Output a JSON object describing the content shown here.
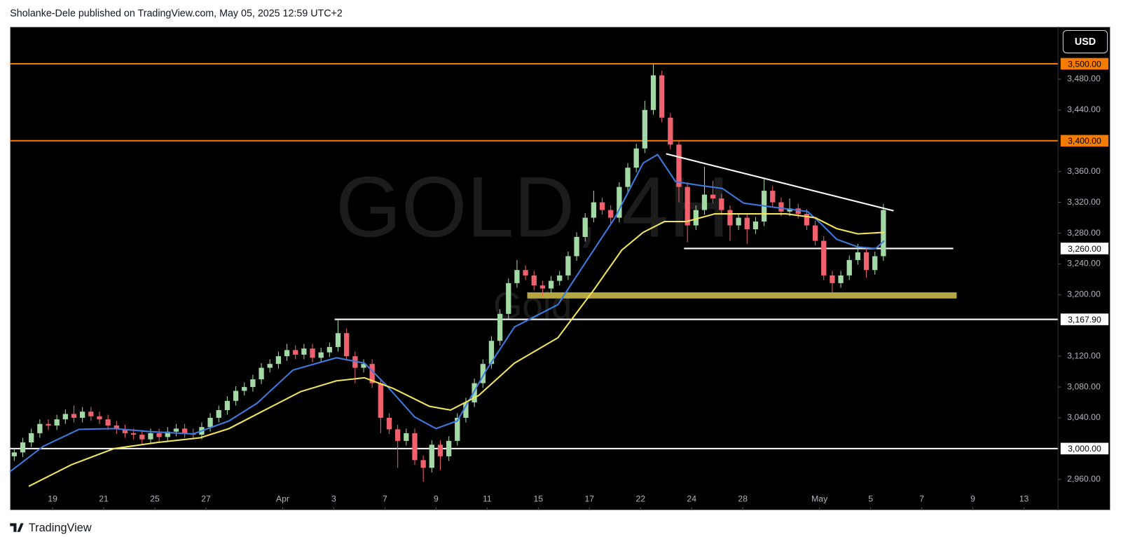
{
  "header": {
    "title": "Sholanke-Dele published on TradingView.com, May 05, 2025 12:59 UTC+2"
  },
  "footer": {
    "brand": "TradingView"
  },
  "chart_data": {
    "type": "candlestick",
    "watermark": {
      "symbol": "GOLD, 4H",
      "name": "Gold"
    },
    "currency": "USD",
    "up_color": "#a3d9a5",
    "down_color": "#f0616d",
    "open": [
      2990,
      2995,
      3008,
      3020,
      3032,
      3030,
      3038,
      3045,
      3040,
      3048,
      3042,
      3038,
      3030,
      3025,
      3020,
      3018,
      3012,
      3020,
      3015,
      3022,
      3026,
      3020,
      3018,
      3028,
      3040,
      3050,
      3062,
      3075,
      3080,
      3090,
      3105,
      3110,
      3120,
      3128,
      3122,
      3130,
      3118,
      3125,
      3132,
      3150,
      3120,
      3105,
      3110,
      3085,
      3040,
      3025,
      3010,
      3020,
      2985,
      2975,
      3005,
      2990,
      3010,
      3040,
      3060,
      3085,
      3110,
      3140,
      3175,
      3215,
      3232,
      3225,
      3212,
      3208,
      3218,
      3225,
      3250,
      3275,
      3300,
      3320,
      3310,
      3300,
      3340,
      3365,
      3390,
      3440,
      3485,
      3430,
      3395,
      3340,
      3290,
      3310,
      3330,
      3325,
      3310,
      3290,
      3300,
      3285,
      3295,
      3335,
      3320,
      3308,
      3312,
      3305,
      3290,
      3270,
      3225,
      3215,
      3225,
      3245,
      3255,
      3232,
      3250
    ],
    "high": [
      3001,
      3014,
      3026,
      3038,
      3038,
      3044,
      3051,
      3056,
      3054,
      3054,
      3048,
      3044,
      3036,
      3031,
      3026,
      3024,
      3026,
      3026,
      3028,
      3032,
      3032,
      3026,
      3034,
      3046,
      3056,
      3068,
      3081,
      3086,
      3096,
      3111,
      3116,
      3126,
      3136,
      3134,
      3136,
      3136,
      3131,
      3138,
      3167,
      3156,
      3126,
      3116,
      3116,
      3091,
      3046,
      3031,
      3026,
      3026,
      2991,
      3011,
      3011,
      3016,
      3046,
      3066,
      3091,
      3116,
      3146,
      3181,
      3221,
      3245,
      3238,
      3231,
      3218,
      3224,
      3231,
      3256,
      3281,
      3306,
      3335,
      3326,
      3316,
      3346,
      3371,
      3396,
      3452,
      3500,
      3491,
      3436,
      3401,
      3346,
      3316,
      3366,
      3348,
      3331,
      3316,
      3306,
      3306,
      3301,
      3350,
      3341,
      3326,
      3325,
      3318,
      3311,
      3296,
      3276,
      3231,
      3231,
      3251,
      3266,
      3261,
      3256,
      3318
    ],
    "low": [
      2984,
      2989,
      3002,
      3014,
      3024,
      3024,
      3032,
      3034,
      3034,
      3036,
      3032,
      3024,
      3019,
      3014,
      3012,
      3006,
      3006,
      3009,
      3009,
      3016,
      3014,
      3012,
      3012,
      3022,
      3034,
      3044,
      3056,
      3069,
      3074,
      3084,
      3099,
      3104,
      3114,
      3116,
      3116,
      3112,
      3112,
      3119,
      3126,
      3114,
      3085,
      3099,
      3079,
      3020,
      3019,
      2975,
      3004,
      2979,
      2957,
      2969,
      2972,
      2984,
      3004,
      3034,
      3054,
      3079,
      3104,
      3134,
      3169,
      3209,
      3219,
      3206,
      3198,
      3202,
      3212,
      3219,
      3244,
      3269,
      3294,
      3304,
      3290,
      3294,
      3334,
      3359,
      3384,
      3434,
      3424,
      3389,
      3320,
      3268,
      3284,
      3304,
      3319,
      3304,
      3270,
      3284,
      3266,
      3279,
      3289,
      3314,
      3302,
      3302,
      3299,
      3284,
      3264,
      3219,
      3202,
      3209,
      3219,
      3239,
      3222,
      3226,
      3244
    ],
    "close": [
      2995,
      3008,
      3020,
      3032,
      3030,
      3038,
      3045,
      3040,
      3048,
      3042,
      3038,
      3030,
      3025,
      3020,
      3018,
      3012,
      3020,
      3015,
      3022,
      3026,
      3020,
      3018,
      3028,
      3040,
      3050,
      3062,
      3075,
      3080,
      3090,
      3105,
      3110,
      3120,
      3128,
      3122,
      3130,
      3118,
      3125,
      3132,
      3150,
      3120,
      3105,
      3110,
      3085,
      3040,
      3025,
      3010,
      3020,
      2985,
      2975,
      3005,
      2990,
      3010,
      3040,
      3060,
      3085,
      3110,
      3140,
      3175,
      3215,
      3232,
      3225,
      3212,
      3208,
      3218,
      3225,
      3250,
      3275,
      3300,
      3320,
      3310,
      3300,
      3340,
      3365,
      3390,
      3440,
      3485,
      3430,
      3395,
      3340,
      3290,
      3310,
      3330,
      3325,
      3310,
      3290,
      3300,
      3285,
      3295,
      3335,
      3320,
      3308,
      3312,
      3305,
      3290,
      3270,
      3225,
      3215,
      3225,
      3245,
      3255,
      3232,
      3250,
      3310
    ],
    "moving_averages": [
      {
        "color": "#3d7be0",
        "x": [
          0,
          3.9,
          8.1,
          12.3,
          16.4,
          21.5,
          25.7,
          29.0,
          33.2,
          38.3,
          41.6,
          44.1,
          47.5,
          50.0,
          52.5,
          55.9,
          59.2,
          64.3,
          67.6,
          71.0,
          74.3,
          76.0,
          78.1,
          81.0,
          83.6,
          86.1,
          89.4,
          93.6,
          95.3,
          97.0,
          99.5,
          101.6,
          102.6
        ],
        "values": [
          2970,
          3003,
          3025,
          3026,
          3022,
          3019,
          3036,
          3059,
          3102,
          3118,
          3111,
          3083,
          3041,
          3026,
          3036,
          3102,
          3158,
          3187,
          3243,
          3300,
          3371,
          3382,
          3347,
          3342,
          3338,
          3319,
          3314,
          3308,
          3291,
          3272,
          3262,
          3260,
          3270
        ]
      },
      {
        "color": "#f3e55b",
        "x": [
          2.2,
          7.2,
          12.2,
          17.3,
          22.3,
          25.7,
          29.9,
          34.1,
          38.3,
          41.6,
          45.0,
          49.2,
          51.7,
          55.0,
          59.2,
          64.3,
          68.5,
          71.8,
          74.3,
          76.8,
          79.4,
          82.7,
          86.9,
          91.1,
          94.5,
          97.0,
          99.5,
          102.6
        ],
        "values": [
          2951,
          2979,
          3000,
          3008,
          3014,
          3026,
          3050,
          3074,
          3088,
          3092,
          3078,
          3055,
          3050,
          3069,
          3111,
          3144,
          3206,
          3258,
          3281,
          3295,
          3295,
          3305,
          3305,
          3305,
          3300,
          3286,
          3279,
          3281
        ]
      }
    ],
    "levels": [
      {
        "value": 3500,
        "label": "3,500.00",
        "color": "#f57c00"
      },
      {
        "value": 3400,
        "label": "3,400.00",
        "color": "#f57c00"
      },
      {
        "value": 3260,
        "label": "3,260.00",
        "color": "#ffffff",
        "x": [
          79.1,
          110.7
        ]
      },
      {
        "value": 3167.9,
        "label": "3,167.90",
        "color": "#ffffff",
        "x": [
          38.1,
          123
        ]
      },
      {
        "value": 3000,
        "label": "3,000.00",
        "color": "#ffffff"
      }
    ],
    "zones": [
      {
        "from": 3195,
        "to": 3203,
        "x": [
          60.7,
          111.1
        ],
        "color": "#b5a642"
      }
    ],
    "trendlines": [
      {
        "x": [
          77,
          103.7
        ],
        "values": [
          3383,
          3309
        ],
        "color": "#ffffff"
      }
    ],
    "xlim": [
      0,
      123
    ],
    "ylim": [
      2920,
      3548
    ],
    "xticks": [
      {
        "value": 5,
        "label": "19"
      },
      {
        "value": 11,
        "label": "21"
      },
      {
        "value": 17,
        "label": "25"
      },
      {
        "value": 23,
        "label": "27"
      },
      {
        "value": 32,
        "label": "Apr"
      },
      {
        "value": 38,
        "label": "3"
      },
      {
        "value": 44,
        "label": "7"
      },
      {
        "value": 50,
        "label": "9"
      },
      {
        "value": 56,
        "label": "11"
      },
      {
        "value": 62,
        "label": "15"
      },
      {
        "value": 68,
        "label": "17"
      },
      {
        "value": 74,
        "label": "22"
      },
      {
        "value": 80,
        "label": "24"
      },
      {
        "value": 86,
        "label": "28"
      },
      {
        "value": 95,
        "label": "May"
      },
      {
        "value": 101,
        "label": "5"
      },
      {
        "value": 107,
        "label": "7"
      },
      {
        "value": 113,
        "label": "9"
      },
      {
        "value": 119,
        "label": "13"
      }
    ],
    "yticks": [
      {
        "value": 3480,
        "label": "3,480.00"
      },
      {
        "value": 3440,
        "label": "3,440.00"
      },
      {
        "value": 3360,
        "label": "3,360.00"
      },
      {
        "value": 3320,
        "label": "3,320.00"
      },
      {
        "value": 3280,
        "label": "3,280.00"
      },
      {
        "value": 3240,
        "label": "3,240.00"
      },
      {
        "value": 3200,
        "label": "3,200.00"
      },
      {
        "value": 3120,
        "label": "3,120.00"
      },
      {
        "value": 3080,
        "label": "3,080.00"
      },
      {
        "value": 3040,
        "label": "3,040.00"
      },
      {
        "value": 2960,
        "label": "2,960.00"
      }
    ]
  }
}
